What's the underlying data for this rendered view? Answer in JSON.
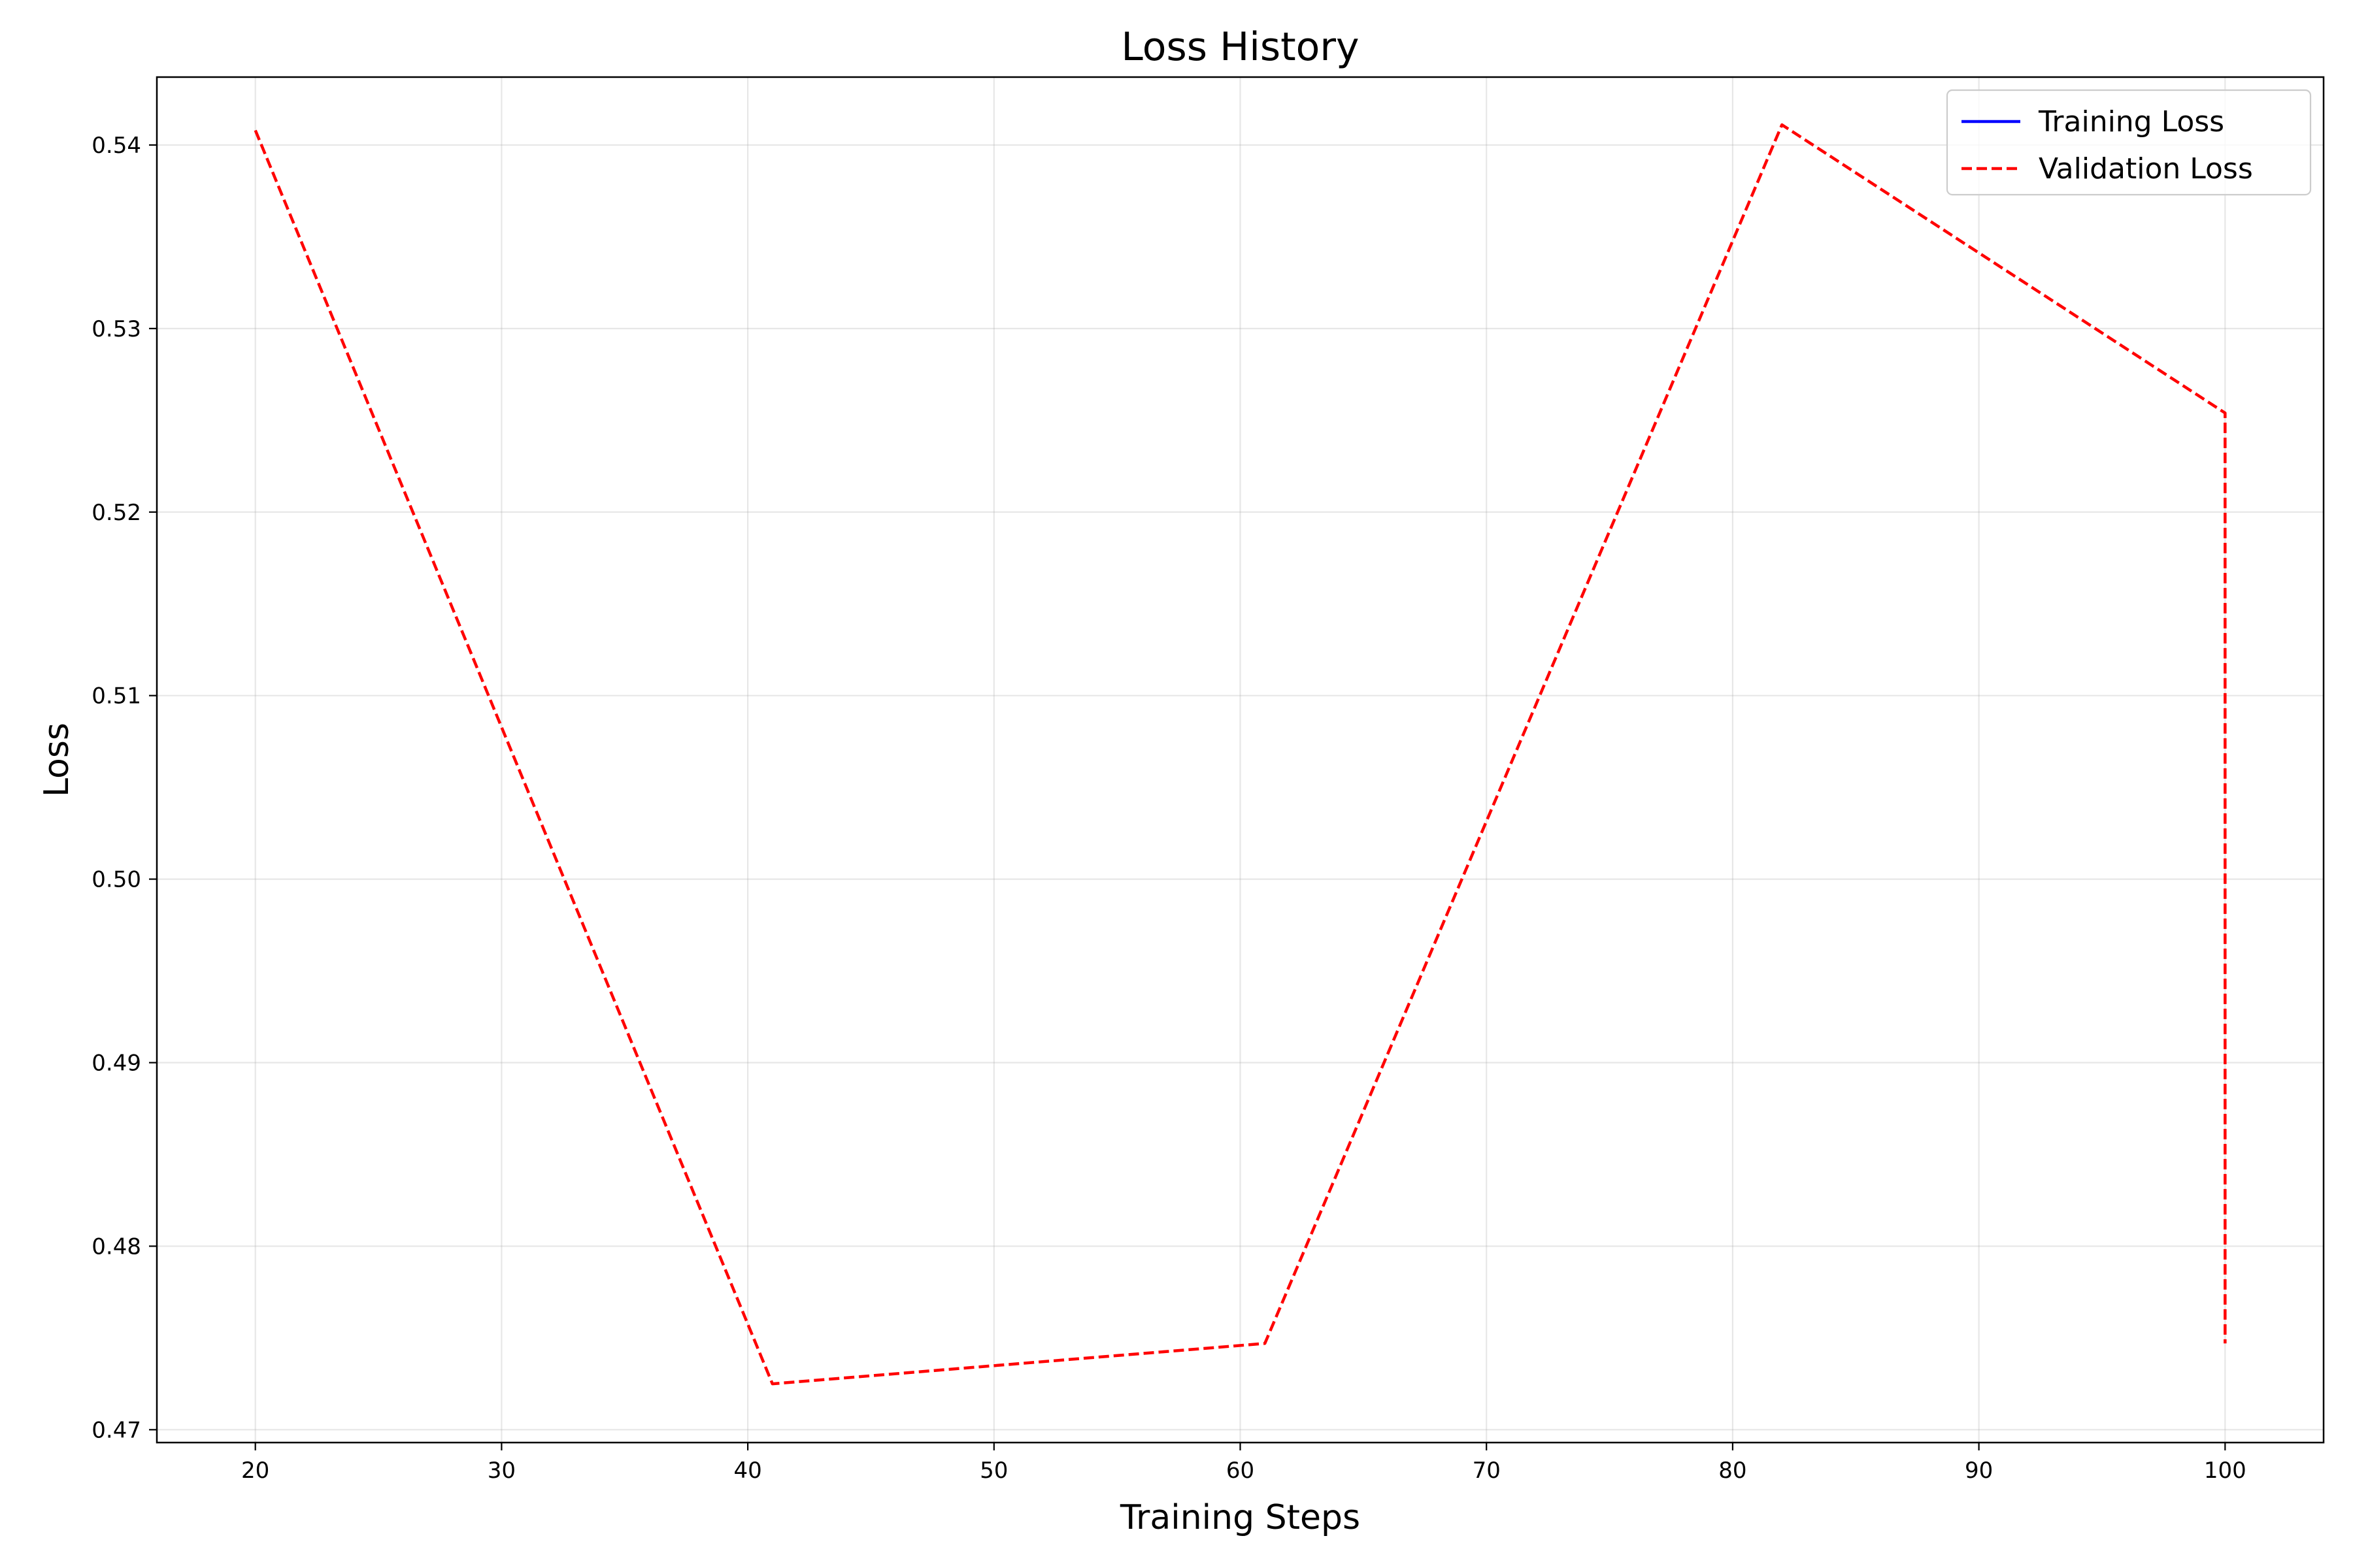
{
  "chart_data": {
    "type": "line",
    "title": "Loss History",
    "xlabel": "Training Steps",
    "ylabel": "Loss",
    "xlim": [
      16,
      104
    ],
    "ylim": [
      0.4693,
      0.5437
    ],
    "xticks": [
      20,
      30,
      40,
      50,
      60,
      70,
      80,
      90,
      100
    ],
    "yticks": [
      0.47,
      0.48,
      0.49,
      0.5,
      0.51,
      0.52,
      0.53,
      0.54
    ],
    "ytick_labels": [
      "0.47",
      "0.48",
      "0.49",
      "0.50",
      "0.51",
      "0.52",
      "0.53",
      "0.54"
    ],
    "grid": true,
    "legend_position": "top-right",
    "series": [
      {
        "name": "Training Loss",
        "color": "#0000ff",
        "line_style": "solid",
        "x": [],
        "y": []
      },
      {
        "name": "Validation Loss",
        "color": "#ff0000",
        "line_style": "dashed",
        "x": [
          20,
          41,
          61,
          82,
          100,
          100
        ],
        "y": [
          0.5408,
          0.4725,
          0.4747,
          0.5411,
          0.5254,
          0.4747
        ]
      }
    ]
  }
}
